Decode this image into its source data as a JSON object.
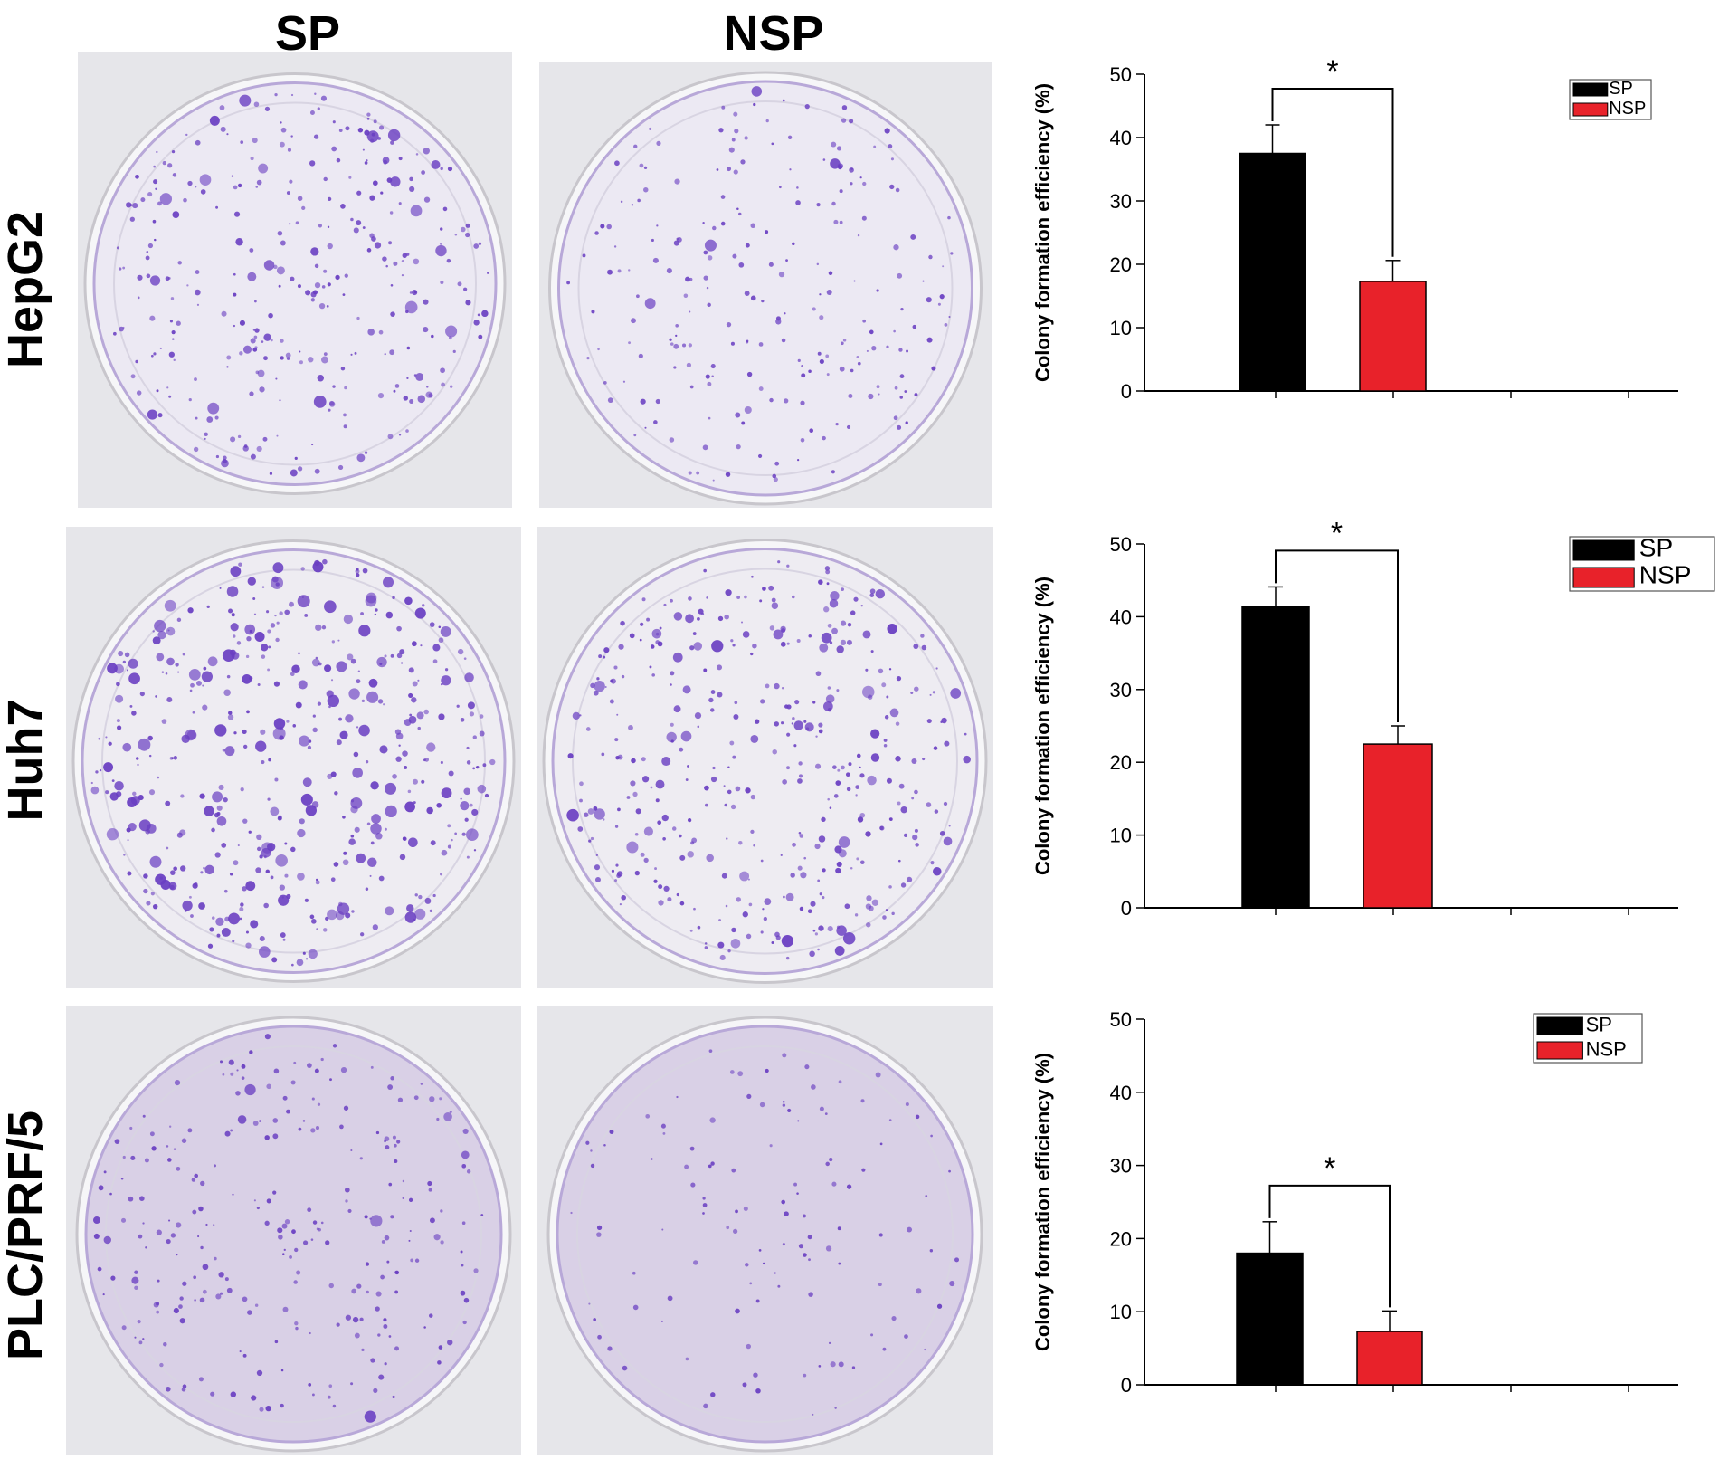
{
  "column_headers": [
    "SP",
    "NSP"
  ],
  "row_labels": [
    "HepG2",
    "Huh7",
    "PLC/PRF/5"
  ],
  "colors": {
    "sp": "#000000",
    "nsp": "#e8222a",
    "stain": "#6a3fc2",
    "plate_hepg2": "#ece9f3",
    "plate_huh7": "#eeecf2",
    "plate_plc": "#d9d0e6"
  },
  "chart_data": [
    {
      "type": "bar",
      "cell_line": "HepG2",
      "ylabel": "Colony formation efficiency (%)",
      "ylim": [
        0,
        50
      ],
      "yticks": [
        "0",
        "10",
        "20",
        "30",
        "40",
        "50"
      ],
      "series": [
        {
          "name": "SP",
          "value": 37.5,
          "error": 4.5
        },
        {
          "name": "NSP",
          "value": 17.3,
          "error": 3.3
        }
      ],
      "significance": "*",
      "legend": [
        "SP",
        "NSP"
      ],
      "legend_position": "top-right"
    },
    {
      "type": "bar",
      "cell_line": "Huh7",
      "ylabel": "Colony formation efficiency (%)",
      "ylim": [
        0,
        50
      ],
      "yticks": [
        "0",
        "10",
        "20",
        "30",
        "40",
        "50"
      ],
      "series": [
        {
          "name": "SP",
          "value": 41.4,
          "error": 2.7
        },
        {
          "name": "NSP",
          "value": 22.5,
          "error": 2.5
        }
      ],
      "significance": "*",
      "legend": [
        "SP",
        "NSP"
      ],
      "legend_position": "top-right"
    },
    {
      "type": "bar",
      "cell_line": "PLC/PRF/5",
      "ylabel": "Colony formation efficiency (%)",
      "ylim": [
        0,
        50
      ],
      "yticks": [
        "0",
        "10",
        "20",
        "30",
        "40",
        "50"
      ],
      "series": [
        {
          "name": "SP",
          "value": 18.0,
          "error": 4.3
        },
        {
          "name": "NSP",
          "value": 7.3,
          "error": 2.8
        }
      ],
      "significance": "*",
      "legend": [
        "SP",
        "NSP"
      ],
      "legend_position": "top-right"
    }
  ]
}
